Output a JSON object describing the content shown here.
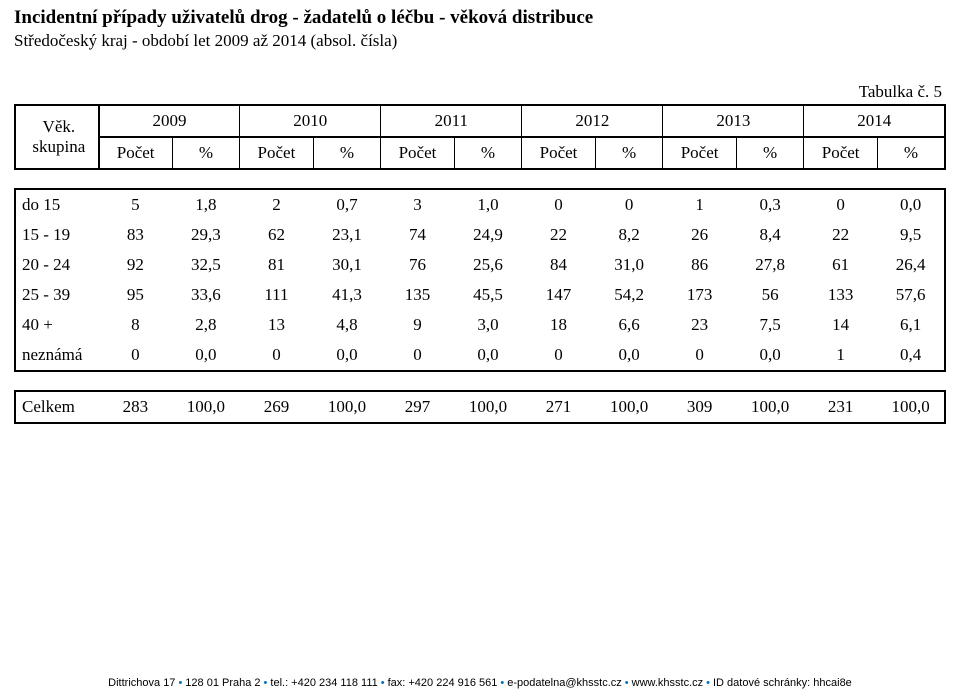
{
  "header": {
    "title": "Incidentní případy uživatelů drog - žadatelů o léčbu - věková distribuce",
    "subtitle": "Středočeský kraj - období let 2009 až 2014 (absol. čísla)",
    "table_label": "Tabulka č. 5"
  },
  "table": {
    "row_header_top": "Věk.",
    "row_header_bottom": "skupina",
    "years": [
      "2009",
      "2010",
      "2011",
      "2012",
      "2013",
      "2014"
    ],
    "sub_count": "Počet",
    "sub_pct": "%",
    "rows": [
      {
        "label": "do  15",
        "cells": [
          "5",
          "1,8",
          "2",
          "0,7",
          "3",
          "1,0",
          "0",
          "0",
          "1",
          "0,3",
          "0",
          "0,0"
        ]
      },
      {
        "label": "15 - 19",
        "cells": [
          "83",
          "29,3",
          "62",
          "23,1",
          "74",
          "24,9",
          "22",
          "8,2",
          "26",
          "8,4",
          "22",
          "9,5"
        ]
      },
      {
        "label": "20 - 24",
        "cells": [
          "92",
          "32,5",
          "81",
          "30,1",
          "76",
          "25,6",
          "84",
          "31,0",
          "86",
          "27,8",
          "61",
          "26,4"
        ]
      },
      {
        "label": "25 - 39",
        "cells": [
          "95",
          "33,6",
          "111",
          "41,3",
          "135",
          "45,5",
          "147",
          "54,2",
          "173",
          "56",
          "133",
          "57,6"
        ]
      },
      {
        "label": "40 +",
        "cells": [
          "8",
          "2,8",
          "13",
          "4,8",
          "9",
          "3,0",
          "18",
          "6,6",
          "23",
          "7,5",
          "14",
          "6,1"
        ]
      },
      {
        "label": "neznámá",
        "cells": [
          "0",
          "0,0",
          "0",
          "0,0",
          "0",
          "0,0",
          "0",
          "0,0",
          "0",
          "0,0",
          "1",
          "0,4"
        ]
      }
    ],
    "total": {
      "label": "Celkem",
      "cells": [
        "283",
        "100,0",
        "269",
        "100,0",
        "297",
        "100,0",
        "271",
        "100,0",
        "309",
        "100,0",
        "231",
        "100,0"
      ]
    }
  },
  "footer": {
    "parts": [
      "Dittrichova 17",
      "128 01 Praha 2",
      "tel.: +420 234 118 111",
      "fax: +420 224 916 561",
      "e-podatelna@khsstc.cz",
      "www.khsstc.cz",
      "ID datové schránky: hhcai8e"
    ]
  },
  "style": {
    "separator_color": "#0070c0",
    "text_color": "#000000",
    "border_color": "#000000",
    "background": "#ffffff",
    "title_fontsize": 19,
    "body_fontsize": 17,
    "footer_fontsize": 11
  }
}
